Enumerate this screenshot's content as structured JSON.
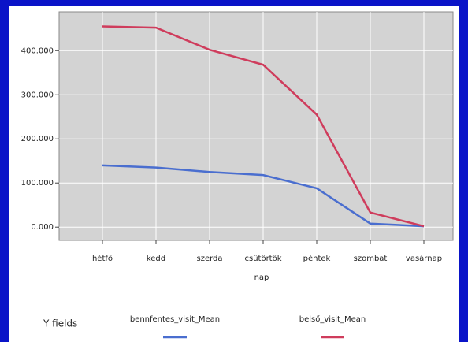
{
  "chart_data": {
    "type": "line",
    "x_label": "nap",
    "legend_title": "Y fields",
    "categories": [
      "hétfő",
      "kedd",
      "szerda",
      "csütörtök",
      "péntek",
      "szombat",
      "vasárnap"
    ],
    "series": [
      {
        "name": "bennfentes_visit_Mean",
        "color": "#4a6ecf",
        "values": [
          140,
          135,
          125,
          118,
          88,
          8,
          2
        ]
      },
      {
        "name": "belső_visit_Mean",
        "color": "#cf3c5c",
        "values": [
          455,
          452,
          402,
          368,
          255,
          33,
          2
        ]
      }
    ],
    "ylim": [
      -30,
      488
    ],
    "yticks": [
      {
        "value": 0,
        "label": "0.000"
      },
      {
        "value": 100,
        "label": "100.000"
      },
      {
        "value": 200,
        "label": "200.000"
      },
      {
        "value": 300,
        "label": "300.000"
      },
      {
        "value": 400,
        "label": "400.000"
      }
    ],
    "grid": true
  }
}
